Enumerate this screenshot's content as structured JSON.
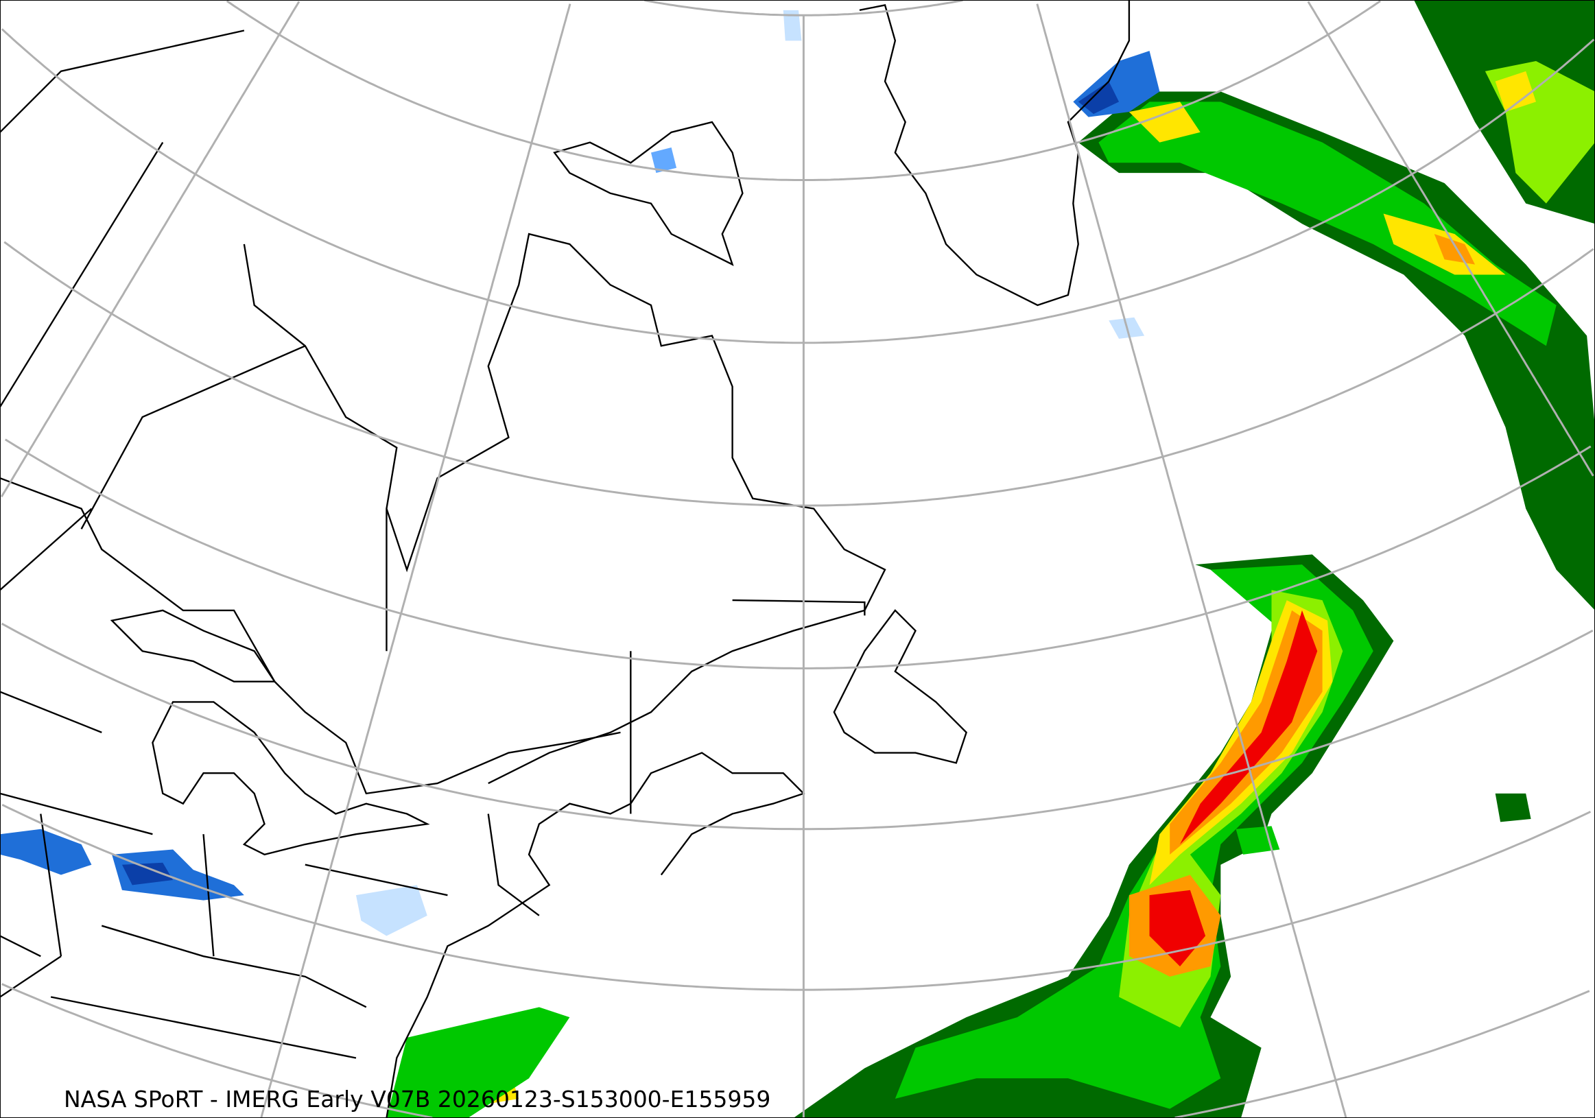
{
  "caption": "NASA SPoRT - IMERG Early V07B 20260123-S153000-E155959",
  "colors": {
    "graticule": "#b0b0b0",
    "coastline": "#000000",
    "precip_light_blue": "#c6e2ff",
    "precip_mid_blue": "#63a9ff",
    "precip_blue": "#1f6fd8",
    "precip_dark_blue": "#0b3fa8",
    "precip_dark_green": "#006a00",
    "precip_green": "#00c800",
    "precip_light_green": "#8cf000",
    "precip_yellow": "#ffe600",
    "precip_orange": "#ff9a00",
    "precip_red": "#f00000"
  }
}
